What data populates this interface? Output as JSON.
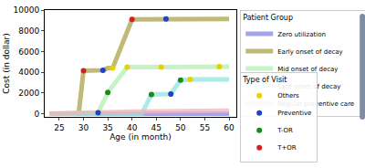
{
  "chart_data": {
    "type": "line",
    "x_label": "Age (in month)",
    "y_label": "Cost (in dollar)",
    "xlim": [
      22,
      61.5
    ],
    "xticks": [
      25,
      30,
      35,
      40,
      45,
      50,
      55,
      60
    ],
    "ylim": [
      -300,
      10000
    ],
    "yticks": [
      0,
      2000,
      4000,
      6000,
      8000,
      10000
    ],
    "grid": false,
    "legend": "right",
    "series": [
      {
        "name": "Zero utilization",
        "group": "Patient Group",
        "type": "line",
        "color": "#8585e6",
        "x": [
          23,
          60
        ],
        "values": [
          0,
          0
        ]
      },
      {
        "name": "Early onset of decay",
        "group": "Patient Group",
        "type": "line",
        "color": "#aaa34a",
        "x": [
          23,
          29,
          30,
          34,
          35,
          36,
          40,
          47,
          60
        ],
        "values": [
          0,
          0,
          4150,
          4200,
          4400,
          4400,
          9100,
          9150,
          9150
        ]
      },
      {
        "name": "Mid onset of decay",
        "group": "Patient Group",
        "type": "line",
        "color": "#b3f0b3",
        "x": [
          23,
          33,
          35,
          39,
          46,
          58,
          60
        ],
        "values": [
          0,
          100,
          2050,
          4500,
          4500,
          4550,
          4550
        ]
      },
      {
        "name": "Late onset of decay",
        "group": "Patient Group",
        "type": "line",
        "color": "#8fe6e0",
        "x": [
          23,
          42,
          44,
          48,
          50,
          52,
          60
        ],
        "values": [
          0,
          0,
          1850,
          1900,
          3250,
          3300,
          3300
        ]
      },
      {
        "name": "Regular preventive care",
        "group": "Patient Group",
        "type": "line",
        "color": "#f4b3b8",
        "x": [
          23,
          30,
          40,
          50,
          60
        ],
        "values": [
          0,
          100,
          200,
          250,
          300
        ]
      },
      {
        "name": "Others",
        "group": "Type of Visit",
        "type": "scatter",
        "marker": "circle",
        "color": "#e6d200",
        "x": [
          36,
          39,
          46,
          52,
          58
        ],
        "values": [
          4400,
          4500,
          4500,
          3300,
          4550
        ]
      },
      {
        "name": "Preventive",
        "group": "Type of Visit",
        "type": "scatter",
        "marker": "circle",
        "color": "#2040c8",
        "x": [
          33,
          34,
          47,
          48
        ],
        "values": [
          100,
          4200,
          9150,
          1900
        ]
      },
      {
        "name": "T-OR",
        "group": "Type of Visit",
        "type": "scatter",
        "marker": "circle",
        "color": "#1a8a1a",
        "x": [
          35,
          44,
          50
        ],
        "values": [
          2050,
          1850,
          3250
        ]
      },
      {
        "name": "T+OR",
        "group": "Type of Visit",
        "type": "scatter",
        "marker": "circle",
        "color": "#d62020",
        "x": [
          30,
          40
        ],
        "values": [
          4150,
          9100
        ]
      }
    ]
  }
}
